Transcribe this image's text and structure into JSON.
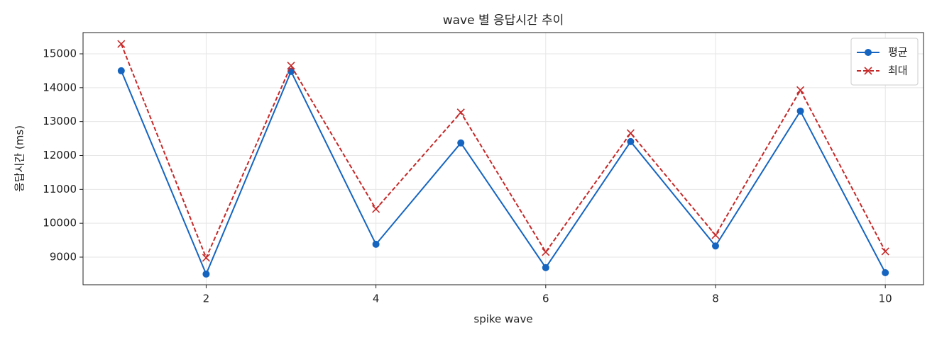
{
  "chart_data": {
    "type": "line",
    "title": "wave 별 응답시간 추이",
    "x_label": "spike wave",
    "y_label": "응답시간 (ms)",
    "x": [
      1,
      2,
      3,
      4,
      5,
      6,
      7,
      8,
      9,
      10
    ],
    "series": [
      {
        "name": "평균",
        "color": "#1565c0",
        "linestyle": "solid",
        "marker": "circle",
        "values": [
          14500,
          8500,
          14480,
          9380,
          12370,
          8690,
          12410,
          9330,
          13310,
          8540
        ]
      },
      {
        "name": "최대",
        "color": "#c62828",
        "linestyle": "dashed",
        "marker": "x",
        "values": [
          15290,
          8980,
          14650,
          10420,
          13270,
          9150,
          12660,
          9650,
          13930,
          9170
        ]
      }
    ],
    "xlim": [
      0.55,
      10.45
    ],
    "xticks": [
      2,
      4,
      6,
      8,
      10
    ],
    "ylim": [
      8185,
      15627
    ],
    "yticks": [
      9000,
      10000,
      11000,
      12000,
      13000,
      14000,
      15000
    ],
    "grid": true,
    "legend": "upper right"
  }
}
